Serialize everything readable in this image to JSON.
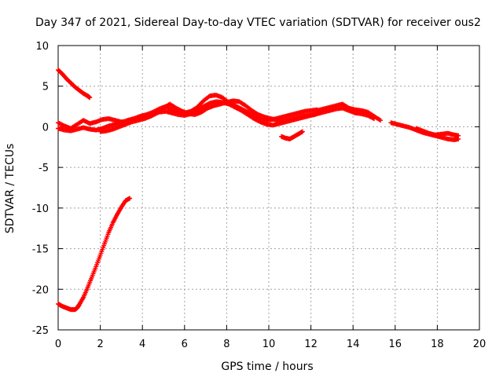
{
  "chart_data": {
    "type": "scatter",
    "title": "Day 347 of 2021, Sidereal Day-to-day VTEC variation (SDTVAR) for receiver ous2",
    "xlabel": "GPS time / hours",
    "ylabel": "SDTVAR / TECUs",
    "xlim": [
      0,
      20
    ],
    "ylim": [
      -25,
      10
    ],
    "xticks": [
      0,
      2,
      4,
      6,
      8,
      10,
      12,
      14,
      16,
      18,
      20
    ],
    "yticks": [
      -25,
      -20,
      -15,
      -10,
      -5,
      0,
      5,
      10
    ],
    "grid": true,
    "marker": "+",
    "color": "#ff0000",
    "series": [
      {
        "name": "arc-upper-left",
        "x": [
          0,
          0.2,
          0.4,
          0.6,
          0.8,
          1.0,
          1.2,
          1.4,
          1.5
        ],
        "y": [
          7.0,
          6.5,
          5.9,
          5.4,
          4.9,
          4.5,
          4.1,
          3.8,
          3.6
        ]
      },
      {
        "name": "arc-descending-ascending",
        "x": [
          0,
          0.2,
          0.4,
          0.6,
          0.8,
          0.9,
          1.0,
          1.2,
          1.4,
          1.6,
          1.8,
          2.0,
          2.2,
          2.4,
          2.6,
          2.8,
          3.0,
          3.2,
          3.4
        ],
        "y": [
          -21.8,
          -22.1,
          -22.3,
          -22.5,
          -22.5,
          -22.3,
          -21.9,
          -21.0,
          -19.8,
          -18.5,
          -17.2,
          -15.8,
          -14.4,
          -13.0,
          -11.8,
          -10.8,
          -9.9,
          -9.1,
          -8.8
        ]
      },
      {
        "name": "arc-main-a",
        "x": [
          0,
          0.3,
          0.6,
          0.9,
          1.2,
          1.5,
          1.8,
          2.1,
          2.4,
          2.7,
          3.0,
          3.3,
          3.6,
          3.9,
          4.2,
          4.5,
          4.8,
          5.1,
          5.4,
          5.7,
          6.0,
          6.3,
          6.6,
          6.9,
          7.2,
          7.5,
          7.8,
          8.1,
          8.4,
          8.7,
          9.0,
          9.3,
          9.6,
          9.9,
          10.2,
          10.5,
          10.8,
          11.1,
          11.4,
          11.7,
          12.0,
          12.3
        ],
        "y": [
          0.5,
          0.1,
          -0.2,
          0.3,
          0.8,
          0.4,
          0.6,
          0.9,
          1.0,
          0.8,
          0.6,
          0.7,
          1.0,
          1.3,
          1.5,
          1.8,
          2.2,
          2.5,
          2.1,
          1.8,
          1.7,
          1.9,
          2.4,
          3.2,
          3.8,
          3.9,
          3.6,
          3.0,
          2.6,
          2.2,
          1.8,
          1.4,
          1.0,
          0.8,
          0.9,
          1.1,
          1.3,
          1.5,
          1.7,
          1.9,
          2.0,
          2.1
        ]
      },
      {
        "name": "arc-main-b",
        "x": [
          0,
          0.3,
          0.6,
          0.9,
          1.2,
          1.5,
          1.8,
          2.1,
          2.4,
          2.7,
          3.0,
          3.3,
          3.6,
          3.9,
          4.2,
          4.5,
          4.8,
          5.1,
          5.4,
          5.7,
          6.0,
          6.3,
          6.6,
          6.9,
          7.2,
          7.5,
          7.8,
          8.1,
          8.4,
          8.7,
          9.0,
          9.3,
          9.6,
          9.9,
          10.2,
          10.5,
          10.8,
          11.1,
          11.4,
          11.7,
          12.0,
          12.3
        ],
        "y": [
          -0.2,
          -0.4,
          -0.5,
          -0.3,
          -0.1,
          -0.3,
          -0.4,
          -0.2,
          0.1,
          0.3,
          0.5,
          0.8,
          1.0,
          1.2,
          1.4,
          1.6,
          1.8,
          1.9,
          1.7,
          1.5,
          1.4,
          1.6,
          2.0,
          2.5,
          2.9,
          3.1,
          3.0,
          2.8,
          2.4,
          2.0,
          1.5,
          1.0,
          0.6,
          0.3,
          0.2,
          0.4,
          0.6,
          0.8,
          1.0,
          1.2,
          1.4,
          1.6
        ]
      },
      {
        "name": "arc-main-c",
        "x": [
          2.0,
          2.3,
          2.6,
          2.9,
          3.2,
          3.5,
          3.8,
          4.1,
          4.4,
          4.7,
          5.0,
          5.3,
          5.6,
          5.9,
          6.2,
          6.5,
          6.8,
          7.1,
          7.4,
          7.7,
          8.0,
          8.3,
          8.6,
          8.9,
          9.2,
          9.5,
          9.8,
          10.1,
          10.4,
          10.7,
          11.0,
          11.3,
          11.6,
          11.9,
          12.2
        ],
        "y": [
          -0.6,
          -0.5,
          -0.3,
          0.0,
          0.3,
          0.6,
          0.8,
          1.0,
          1.3,
          1.7,
          2.3,
          2.8,
          2.3,
          1.9,
          1.6,
          1.5,
          1.8,
          2.3,
          2.6,
          2.8,
          3.0,
          3.2,
          3.1,
          2.6,
          2.0,
          1.5,
          1.2,
          1.0,
          0.8,
          0.7,
          0.9,
          1.1,
          1.3,
          1.4,
          1.5
        ]
      },
      {
        "name": "arc-right",
        "x": [
          12.3,
          12.6,
          12.9,
          13.2,
          13.5,
          13.8,
          14.1,
          14.4,
          14.7,
          15.0,
          15.3
        ],
        "y": [
          2.0,
          2.2,
          2.4,
          2.6,
          2.8,
          2.3,
          2.1,
          2.0,
          1.8,
          1.3,
          0.8
        ]
      },
      {
        "name": "arc-right-b",
        "x": [
          12.3,
          12.6,
          12.9,
          13.2,
          13.5,
          13.8,
          14.1,
          14.4,
          14.7,
          15.0
        ],
        "y": [
          1.6,
          1.8,
          2.0,
          2.2,
          2.3,
          2.0,
          1.7,
          1.6,
          1.4,
          1.0
        ]
      },
      {
        "name": "arc-small",
        "x": [
          10.6,
          10.8,
          11.0,
          11.2,
          11.4,
          11.6
        ],
        "y": [
          -1.2,
          -1.4,
          -1.5,
          -1.2,
          -0.9,
          -0.6
        ]
      },
      {
        "name": "arc-far-right",
        "x": [
          15.8,
          16.1,
          16.4,
          16.7,
          17.0,
          17.3,
          17.6,
          17.9,
          18.2,
          18.5,
          18.8,
          19.0
        ],
        "y": [
          0.5,
          0.3,
          0.1,
          -0.1,
          -0.4,
          -0.7,
          -0.9,
          -1.1,
          -1.3,
          -1.5,
          -1.6,
          -1.5
        ]
      },
      {
        "name": "arc-far-right-b",
        "x": [
          17.0,
          17.3,
          17.6,
          17.9,
          18.2,
          18.5,
          18.8,
          19.0
        ],
        "y": [
          -0.2,
          -0.5,
          -0.8,
          -1.0,
          -0.9,
          -0.8,
          -1.0,
          -1.1
        ]
      }
    ]
  }
}
